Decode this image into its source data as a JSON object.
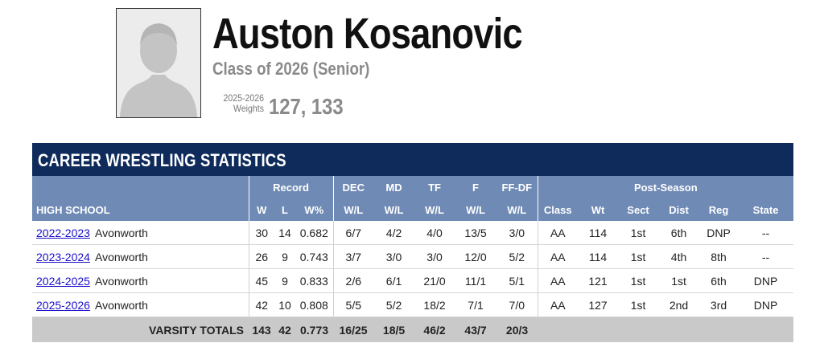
{
  "profile": {
    "name": "Auston Kosanovic",
    "class_line": "Class of 2026 (Senior)",
    "weights_season": "2025-2026",
    "weights_label": "Weights",
    "weights_value": "127, 133",
    "avatar_icon": "person-silhouette-icon"
  },
  "stats": {
    "title": "CAREER WRESTLING STATISTICS",
    "group_headers": {
      "record": "Record",
      "dec": "DEC",
      "md": "MD",
      "tf": "TF",
      "f": "F",
      "ffdf": "FF-DF",
      "postseason": "Post-Season"
    },
    "columns": {
      "high_school": "HIGH SCHOOL",
      "w": "W",
      "l": "L",
      "wpct": "W%",
      "dec": "W/L",
      "md": "W/L",
      "tf": "W/L",
      "f": "W/L",
      "ffdf": "W/L",
      "class": "Class",
      "wt": "Wt",
      "sect": "Sect",
      "dist": "Dist",
      "reg": "Reg",
      "state": "State"
    },
    "rows": [
      {
        "season": "2022-2023",
        "team": "Avonworth",
        "w": "30",
        "l": "14",
        "wpct": "0.682",
        "dec": "6/7",
        "md": "4/2",
        "tf": "4/0",
        "f": "13/5",
        "ffdf": "3/0",
        "class": "AA",
        "wt": "114",
        "sect": "1st",
        "dist": "6th",
        "reg": "DNP",
        "state": "--"
      },
      {
        "season": "2023-2024",
        "team": "Avonworth",
        "w": "26",
        "l": "9",
        "wpct": "0.743",
        "dec": "3/7",
        "md": "3/0",
        "tf": "3/0",
        "f": "12/0",
        "ffdf": "5/2",
        "class": "AA",
        "wt": "114",
        "sect": "1st",
        "dist": "4th",
        "reg": "8th",
        "state": "--"
      },
      {
        "season": "2024-2025",
        "team": "Avonworth",
        "w": "45",
        "l": "9",
        "wpct": "0.833",
        "dec": "2/6",
        "md": "6/1",
        "tf": "21/0",
        "f": "11/1",
        "ffdf": "5/1",
        "class": "AA",
        "wt": "121",
        "sect": "1st",
        "dist": "1st",
        "reg": "6th",
        "state": "DNP"
      },
      {
        "season": "2025-2026",
        "team": "Avonworth",
        "w": "42",
        "l": "10",
        "wpct": "0.808",
        "dec": "5/5",
        "md": "5/2",
        "tf": "18/2",
        "f": "7/1",
        "ffdf": "7/0",
        "class": "AA",
        "wt": "127",
        "sect": "1st",
        "dist": "2nd",
        "reg": "3rd",
        "state": "DNP"
      }
    ],
    "totals": {
      "label": "VARSITY TOTALS",
      "w": "143",
      "l": "42",
      "wpct": "0.773",
      "dec": "16/25",
      "md": "18/5",
      "tf": "46/2",
      "f": "43/7",
      "ffdf": "20/3"
    }
  },
  "colors": {
    "title_bar": "#0f2b5b",
    "header_bg": "#6f8ab5",
    "totals_bg": "#c9c9c9",
    "link": "#1a0dcc"
  }
}
